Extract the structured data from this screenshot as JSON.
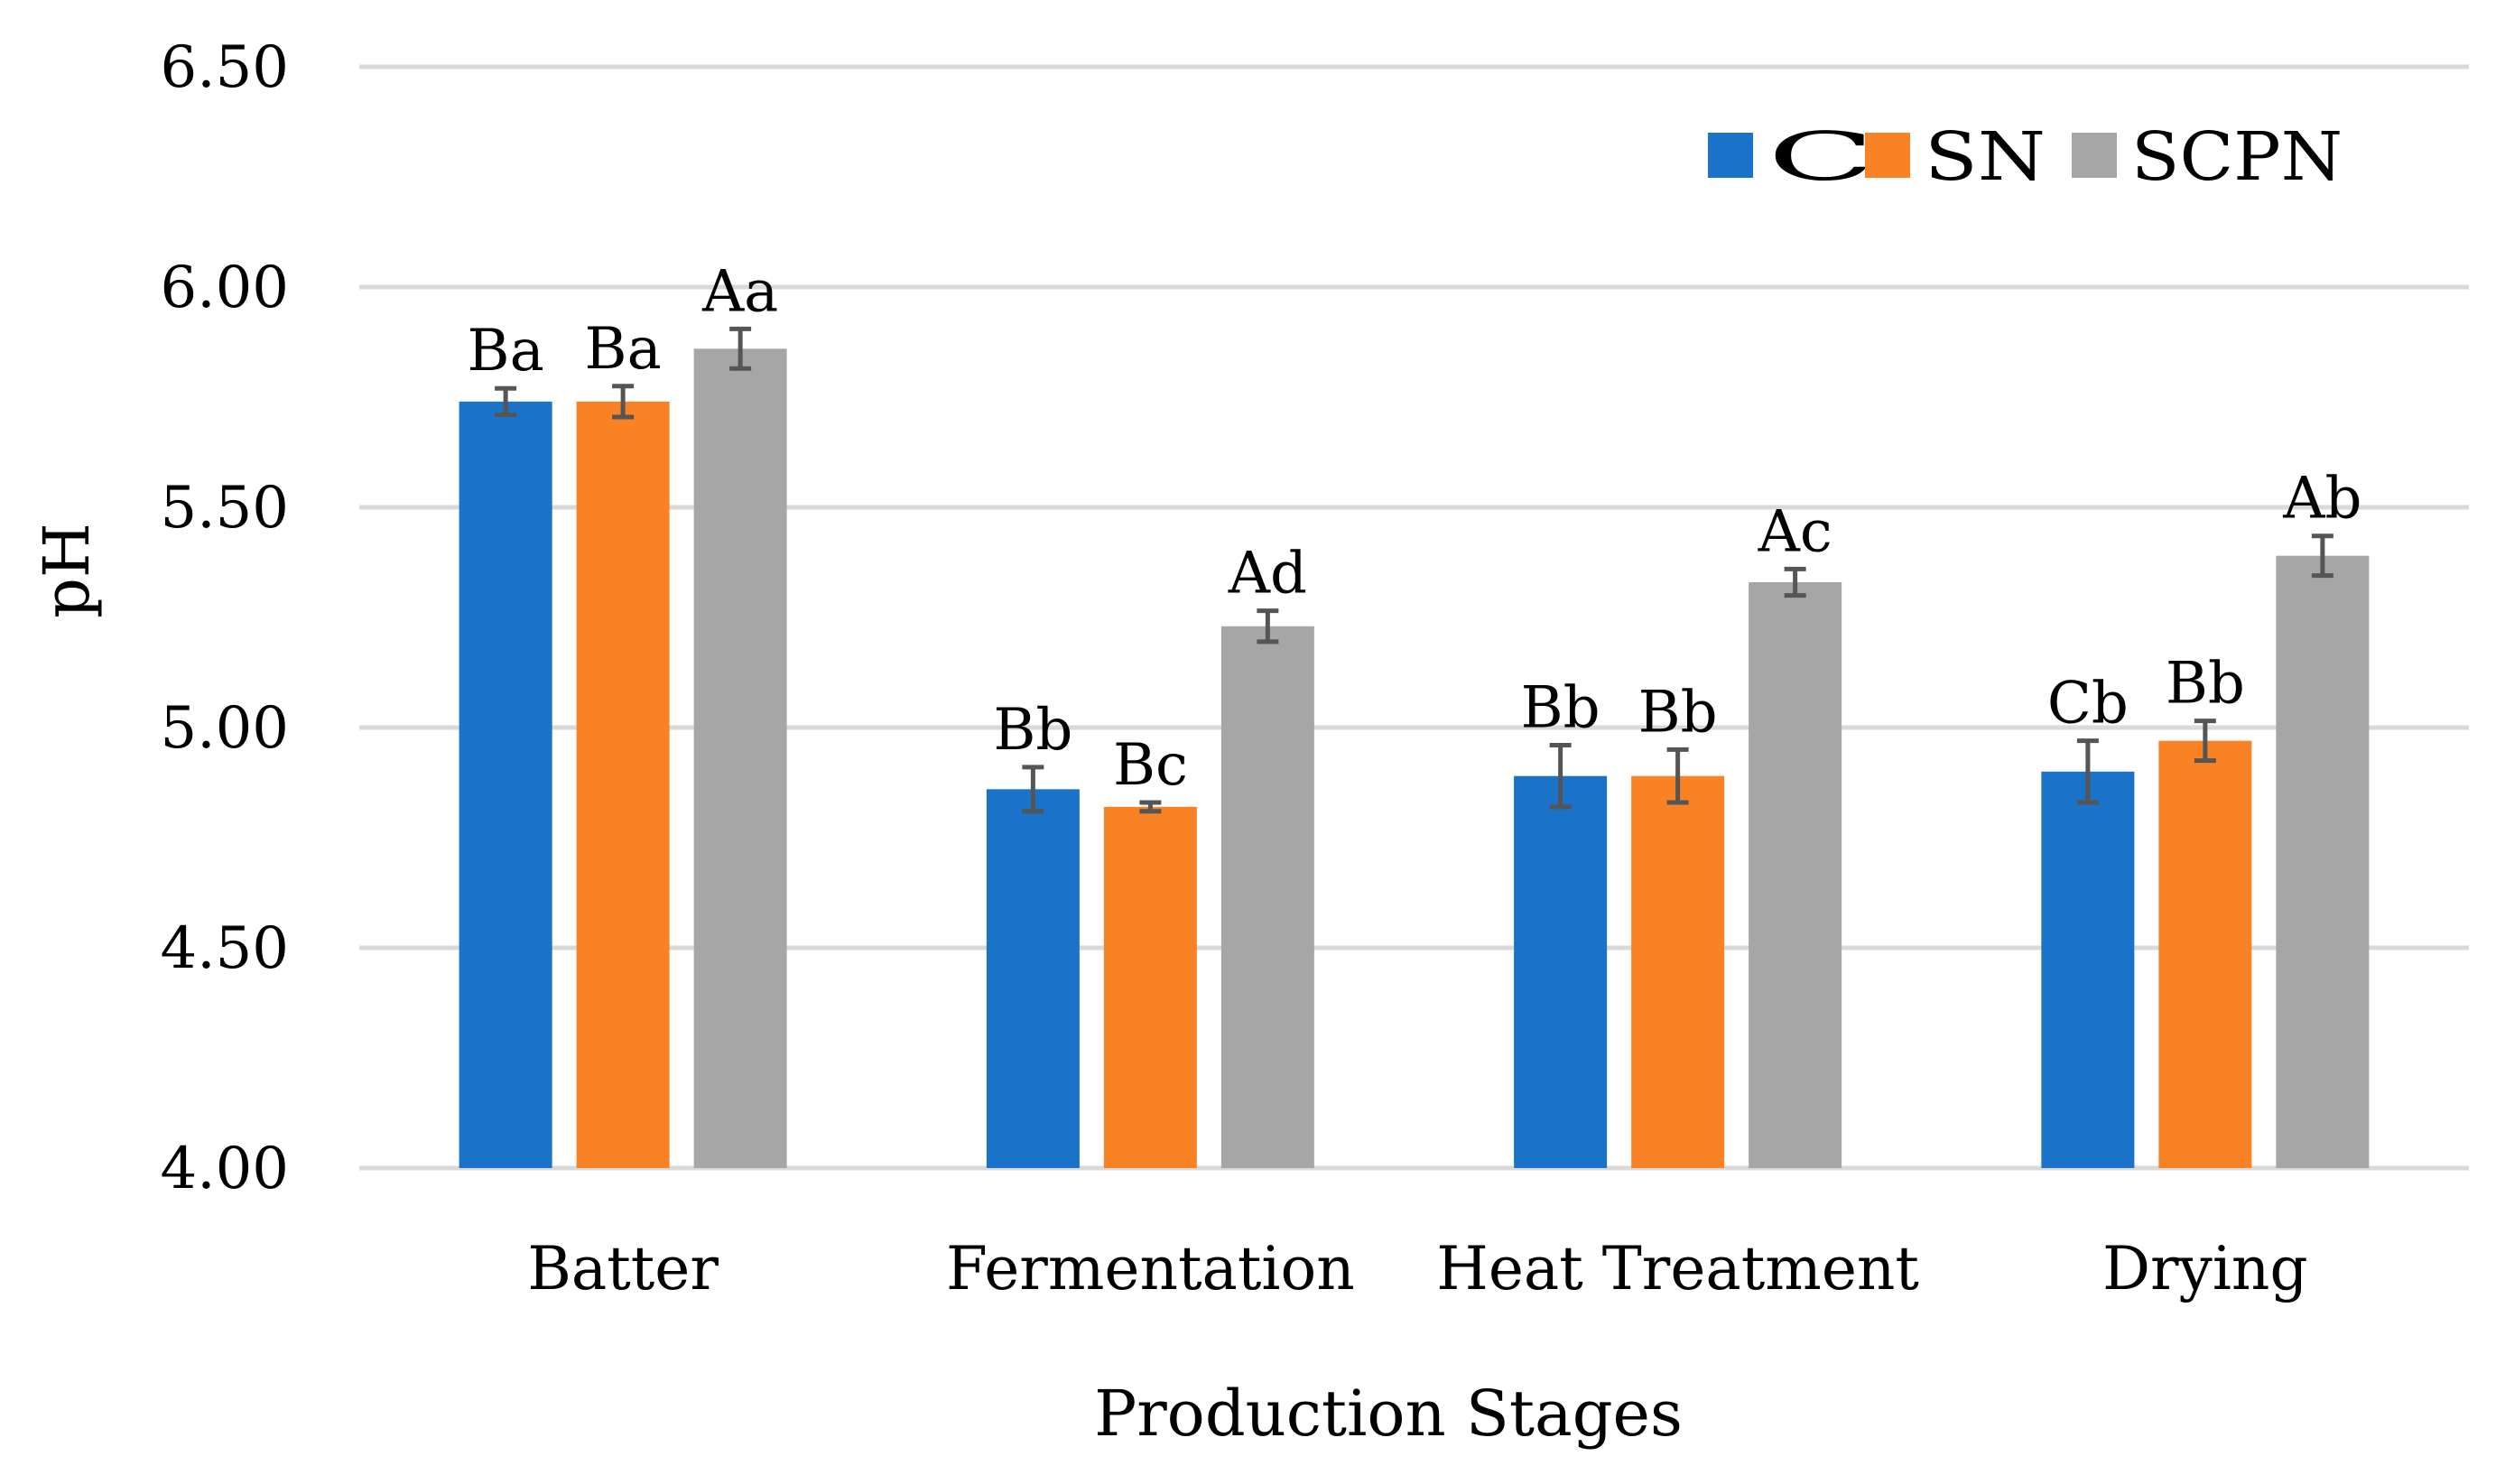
{
  "chart_data": {
    "type": "bar",
    "title": "",
    "xlabel": "Production Stages",
    "ylabel": "pH",
    "ylim": [
      4.0,
      6.5
    ],
    "yticks": [
      "4.00",
      "4.50",
      "5.00",
      "5.50",
      "6.00",
      "6.50"
    ],
    "grid": true,
    "legend_position": "top-right",
    "categories": [
      "Batter",
      "Fermentation",
      "Heat Treatment",
      "Drying"
    ],
    "series": [
      {
        "name": "C",
        "color": "#1a73c8",
        "values": [
          5.74,
          4.86,
          4.89,
          4.9
        ],
        "errors": [
          0.03,
          0.05,
          0.07,
          0.07
        ],
        "labels": [
          "Ba",
          "Bb",
          "Bb",
          "Cb"
        ]
      },
      {
        "name": "SN",
        "color": "#f98225",
        "values": [
          5.74,
          4.82,
          4.89,
          4.97
        ],
        "errors": [
          0.035,
          0.01,
          0.06,
          0.045
        ],
        "labels": [
          "Ba",
          "Bc",
          "Bb",
          "Bb"
        ]
      },
      {
        "name": "SCPN",
        "color": "#a6a6a6",
        "values": [
          5.86,
          5.23,
          5.33,
          5.39
        ],
        "errors": [
          0.045,
          0.035,
          0.03,
          0.045
        ],
        "labels": [
          "Aa",
          "Ad",
          "Ac",
          "Ab"
        ]
      }
    ]
  }
}
